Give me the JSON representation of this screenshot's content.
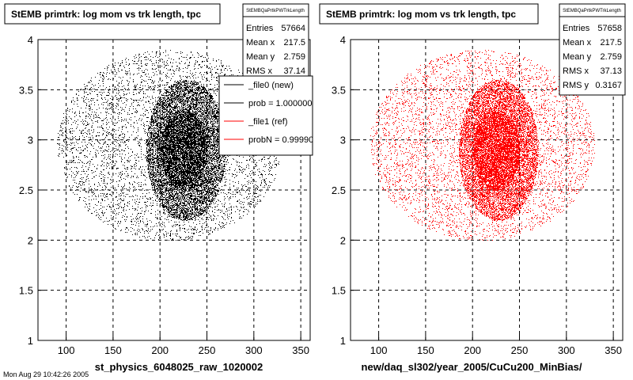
{
  "chart_data": [
    {
      "type": "scatter",
      "title": "StEMB primtrk: log mom vs trk length, tpc",
      "xlabel": "st_physics_6048025_raw_1020002",
      "ylabel": "",
      "xlim": [
        70,
        360
      ],
      "ylim": [
        1,
        4
      ],
      "xticks": [
        "100",
        "150",
        "200",
        "250",
        "300",
        "350"
      ],
      "yticks": [
        "1",
        "1.5",
        "2",
        "2.5",
        "3",
        "3.5",
        "4"
      ],
      "grid": true,
      "color": "#000000",
      "point_regions": [
        {
          "x": [
            90,
            330
          ],
          "y": [
            2.0,
            3.9
          ],
          "count": 5000
        },
        {
          "x": [
            185,
            270
          ],
          "y": [
            2.2,
            3.6
          ],
          "count": 9000
        },
        {
          "x": [
            200,
            250
          ],
          "y": [
            2.5,
            3.3
          ],
          "count": 4000
        }
      ],
      "stats": {
        "name": "StEMBQaPrtkPWTrkLength",
        "rows": [
          {
            "label": "Entries",
            "value": "57664"
          },
          {
            "label": "Mean x",
            "value": "217.5"
          },
          {
            "label": "Mean y",
            "value": "2.759"
          },
          {
            "label": "RMS x",
            "value": "37.14"
          }
        ]
      },
      "legend": {
        "placement": "top-right",
        "entries": [
          {
            "label": "_file0 (new)",
            "color": "#000000"
          },
          {
            "label": "prob = 1.000000",
            "color": "#000000"
          },
          {
            "label": "_file1 (ref)",
            "color": "#ff0000"
          },
          {
            "label": "probN = 0.999900",
            "color": "#ff0000"
          }
        ]
      }
    },
    {
      "type": "scatter",
      "title": "StEMB primtrk: log mom vs trk length, tpc",
      "xlabel": "new/daq_sl302/year_2005/CuCu200_MinBias/",
      "ylabel": "",
      "xlim": [
        70,
        360
      ],
      "ylim": [
        1,
        4
      ],
      "xticks": [
        "100",
        "150",
        "200",
        "250",
        "300",
        "350"
      ],
      "yticks": [
        "1",
        "1.5",
        "2",
        "2.5",
        "3",
        "3.5",
        "4"
      ],
      "grid": true,
      "color": "#ff0000",
      "point_regions": [
        {
          "x": [
            90,
            330
          ],
          "y": [
            2.0,
            3.9
          ],
          "count": 5000
        },
        {
          "x": [
            185,
            270
          ],
          "y": [
            2.2,
            3.6
          ],
          "count": 9000
        },
        {
          "x": [
            200,
            250
          ],
          "y": [
            2.5,
            3.3
          ],
          "count": 4000
        }
      ],
      "stats": {
        "name": "StEMBQaPrtkPWTrkLength",
        "rows": [
          {
            "label": "Entries",
            "value": "57658"
          },
          {
            "label": "Mean x",
            "value": "217.5"
          },
          {
            "label": "Mean y",
            "value": "2.759"
          },
          {
            "label": "RMS x",
            "value": "37.13"
          },
          {
            "label": "RMS y",
            "value": "0.3167"
          }
        ]
      }
    }
  ],
  "footer": "Mon Aug 29 10:42:26 2005"
}
